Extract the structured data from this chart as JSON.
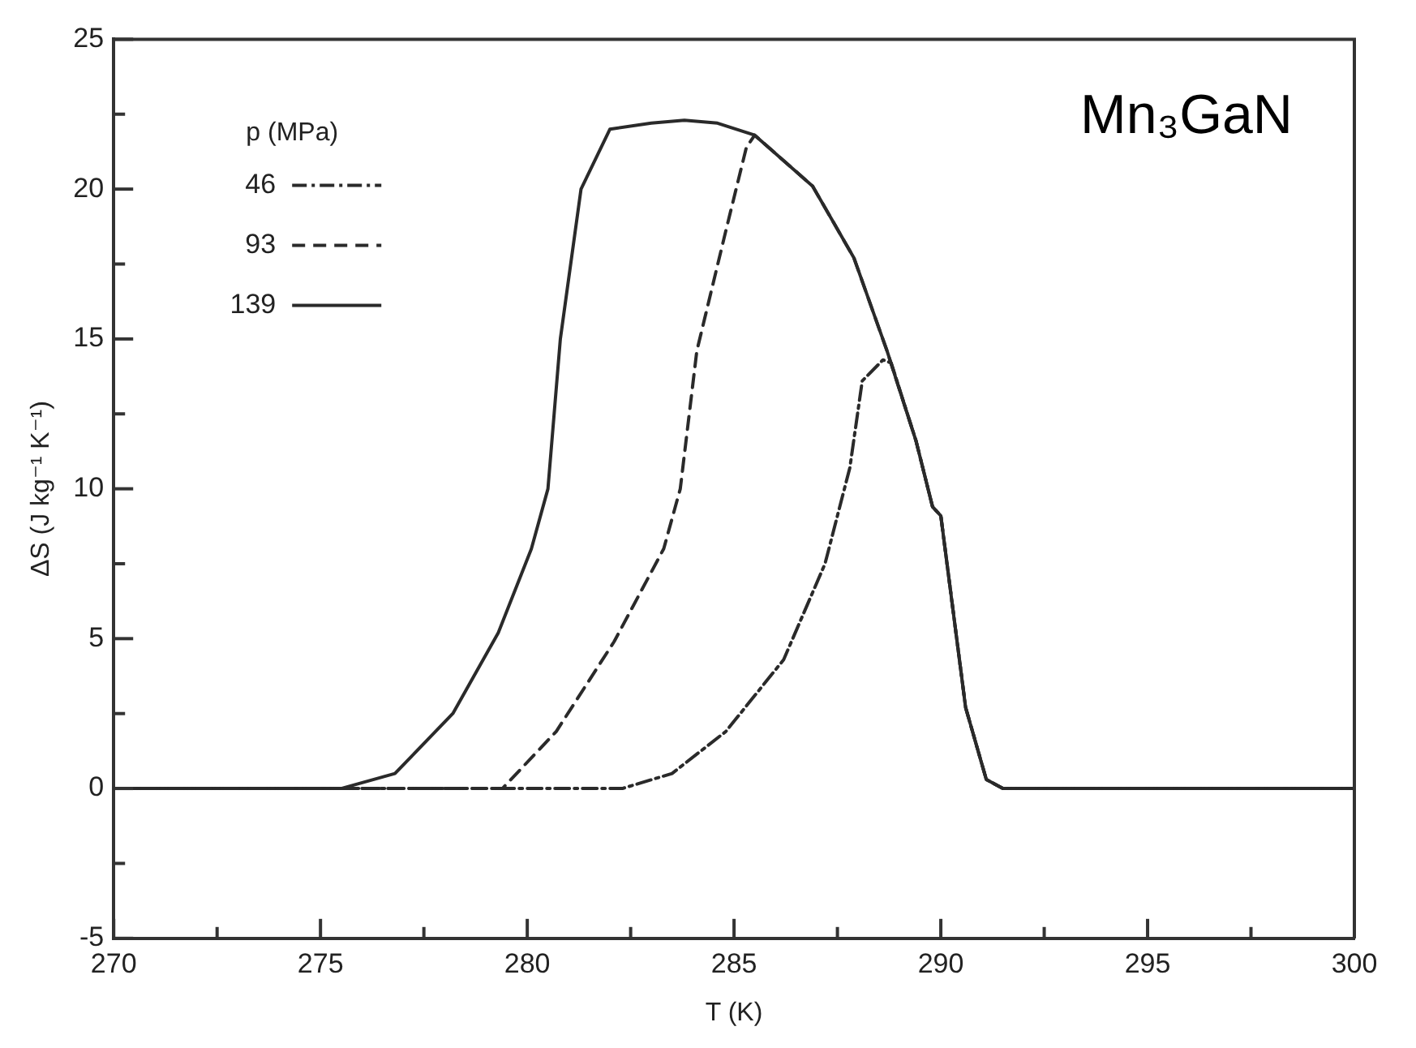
{
  "chart_data": {
    "type": "line",
    "xlabel": "T (K)",
    "ylabel": "ΔS (J kg⁻¹ K⁻¹)",
    "legend_title": "p (MPa)",
    "legend": "top left",
    "annotations": [
      "Mn₃GaN"
    ],
    "xlim": [
      270,
      300
    ],
    "ylim": [
      -5,
      25
    ],
    "xticks": [
      270,
      {
        "value": 272.5,
        "label": null
      },
      275,
      {
        "value": 277.5,
        "label": null
      },
      280,
      {
        "value": 282.5,
        "label": null
      },
      285,
      {
        "value": 287.5,
        "label": null
      },
      290,
      {
        "value": 292.5,
        "label": null
      },
      295,
      {
        "value": 297.5,
        "label": null
      },
      300
    ],
    "yticks": [
      -5,
      {
        "value": -2.5,
        "label": null
      },
      0,
      {
        "value": 2.5,
        "label": null
      },
      5,
      {
        "value": 7.5,
        "label": null
      },
      10,
      {
        "value": 12.5,
        "label": null
      },
      15,
      {
        "value": 17.5,
        "label": null
      },
      20,
      {
        "value": 22.5,
        "label": null
      },
      25
    ],
    "grid": false,
    "marker": "none",
    "series": [
      {
        "name": "46",
        "color": "#2a2a2a",
        "line_style": "dashdot",
        "x": [
          270,
          282.3,
          283.5,
          284.8,
          286.2,
          287.2,
          287.8,
          288.1,
          288.6,
          288.8,
          289.4,
          289.8,
          290.0,
          290.6,
          291.1,
          291.5,
          300
        ],
        "values": [
          0,
          0,
          0.5,
          1.9,
          4.3,
          7.5,
          10.7,
          13.6,
          14.3,
          14.2,
          11.6,
          9.4,
          9.1,
          2.7,
          0.3,
          0,
          0
        ]
      },
      {
        "name": "93",
        "color": "#2a2a2a",
        "line_style": "dashed",
        "x": [
          270,
          279.4,
          280.7,
          282.1,
          283.3,
          283.7,
          284.1,
          284.8,
          285.3,
          285.5,
          286.9,
          287.9,
          288.7,
          289.4,
          289.8,
          290.0,
          290.6,
          291.1,
          291.5,
          300
        ],
        "values": [
          0,
          0,
          1.9,
          4.9,
          8.0,
          10.0,
          14.6,
          18.6,
          21.4,
          21.8,
          20.1,
          17.7,
          14.6,
          11.6,
          9.4,
          9.1,
          2.7,
          0.3,
          0,
          0
        ]
      },
      {
        "name": "139",
        "color": "#2a2a2a",
        "line_style": "solid",
        "x": [
          270,
          275.5,
          276.8,
          278.2,
          279.3,
          280.1,
          280.5,
          280.8,
          281.3,
          282.0,
          283.0,
          283.8,
          284.6,
          285.5,
          286.9,
          287.9,
          288.7,
          289.4,
          289.8,
          290.0,
          290.6,
          291.1,
          291.5,
          300
        ],
        "values": [
          0,
          0,
          0.5,
          2.5,
          5.2,
          8.0,
          10.0,
          15.0,
          20.0,
          22.0,
          22.2,
          22.3,
          22.2,
          21.8,
          20.1,
          17.7,
          14.6,
          11.6,
          9.4,
          9.1,
          2.7,
          0.3,
          0,
          0
        ]
      }
    ]
  }
}
